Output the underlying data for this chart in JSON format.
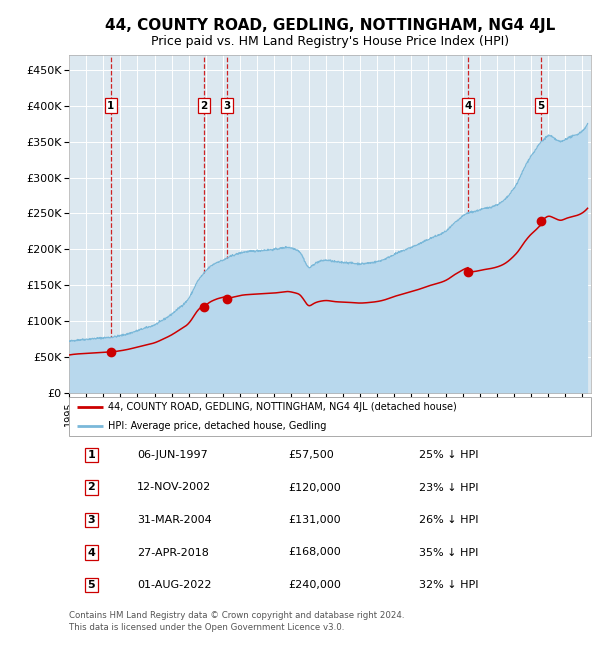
{
  "title": "44, COUNTY ROAD, GEDLING, NOTTINGHAM, NG4 4JL",
  "subtitle": "Price paid vs. HM Land Registry's House Price Index (HPI)",
  "title_fontsize": 11,
  "subtitle_fontsize": 9,
  "hpi_color": "#7ab8d9",
  "hpi_fill_color": "#b8d8ed",
  "sale_color": "#cc0000",
  "dashed_line_color": "#cc0000",
  "bg_color": "#dce8f0",
  "legend_label_sale": "44, COUNTY ROAD, GEDLING, NOTTINGHAM, NG4 4JL (detached house)",
  "legend_label_hpi": "HPI: Average price, detached house, Gedling",
  "sales": [
    {
      "num": 1,
      "date_x": 1997.44,
      "price": 57500,
      "date_str": "06-JUN-1997",
      "pct": "25%",
      "dir": "↓"
    },
    {
      "num": 2,
      "date_x": 2002.87,
      "price": 120000,
      "date_str": "12-NOV-2002",
      "pct": "23%",
      "dir": "↓"
    },
    {
      "num": 3,
      "date_x": 2004.25,
      "price": 131000,
      "date_str": "31-MAR-2004",
      "pct": "26%",
      "dir": "↓"
    },
    {
      "num": 4,
      "date_x": 2018.32,
      "price": 168000,
      "date_str": "27-APR-2018",
      "pct": "35%",
      "dir": "↓"
    },
    {
      "num": 5,
      "date_x": 2022.58,
      "price": 240000,
      "date_str": "01-AUG-2022",
      "pct": "32%",
      "dir": "↓"
    }
  ],
  "xlim": [
    1995.0,
    2025.5
  ],
  "ylim": [
    0,
    470000
  ],
  "yticks": [
    0,
    50000,
    100000,
    150000,
    200000,
    250000,
    300000,
    350000,
    400000,
    450000
  ],
  "ytick_labels": [
    "£0",
    "£50K",
    "£100K",
    "£150K",
    "£200K",
    "£250K",
    "£300K",
    "£350K",
    "£400K",
    "£450K"
  ],
  "footer": "Contains HM Land Registry data © Crown copyright and database right 2024.\nThis data is licensed under the Open Government Licence v3.0.",
  "hpi_years": [
    1995.0,
    1995.5,
    1996.0,
    1996.5,
    1997.0,
    1997.5,
    1998.0,
    1998.5,
    1999.0,
    1999.5,
    2000.0,
    2000.5,
    2001.0,
    2001.5,
    2002.0,
    2002.25,
    2002.5,
    2002.75,
    2003.0,
    2003.25,
    2003.5,
    2003.75,
    2004.0,
    2004.25,
    2004.5,
    2004.75,
    2005.0,
    2005.5,
    2006.0,
    2006.5,
    2007.0,
    2007.25,
    2007.5,
    2007.75,
    2008.0,
    2008.25,
    2008.5,
    2008.75,
    2009.0,
    2009.25,
    2009.5,
    2009.75,
    2010.0,
    2010.5,
    2011.0,
    2011.5,
    2012.0,
    2012.5,
    2013.0,
    2013.5,
    2014.0,
    2014.5,
    2015.0,
    2015.5,
    2016.0,
    2016.5,
    2017.0,
    2017.25,
    2017.5,
    2017.75,
    2018.0,
    2018.25,
    2018.5,
    2018.75,
    2019.0,
    2019.5,
    2020.0,
    2020.5,
    2021.0,
    2021.25,
    2021.5,
    2021.75,
    2022.0,
    2022.25,
    2022.5,
    2022.75,
    2023.0,
    2023.25,
    2023.5,
    2023.75,
    2024.0,
    2024.5,
    2025.0
  ],
  "hpi_values": [
    72000,
    74000,
    75000,
    76000,
    77000,
    78000,
    80000,
    83000,
    87000,
    91000,
    95000,
    102000,
    110000,
    120000,
    132000,
    143000,
    155000,
    163000,
    170000,
    176000,
    180000,
    183000,
    185000,
    188000,
    191000,
    193000,
    195000,
    197000,
    198000,
    199000,
    200000,
    201000,
    202000,
    203000,
    202000,
    200000,
    196000,
    185000,
    175000,
    178000,
    182000,
    184000,
    185000,
    183000,
    182000,
    181000,
    180000,
    181000,
    183000,
    187000,
    193000,
    198000,
    203000,
    208000,
    214000,
    219000,
    225000,
    230000,
    236000,
    241000,
    246000,
    250000,
    252000,
    253000,
    255000,
    258000,
    262000,
    270000,
    285000,
    295000,
    308000,
    320000,
    330000,
    338000,
    347000,
    353000,
    358000,
    356000,
    352000,
    350000,
    353000,
    358000,
    365000
  ]
}
